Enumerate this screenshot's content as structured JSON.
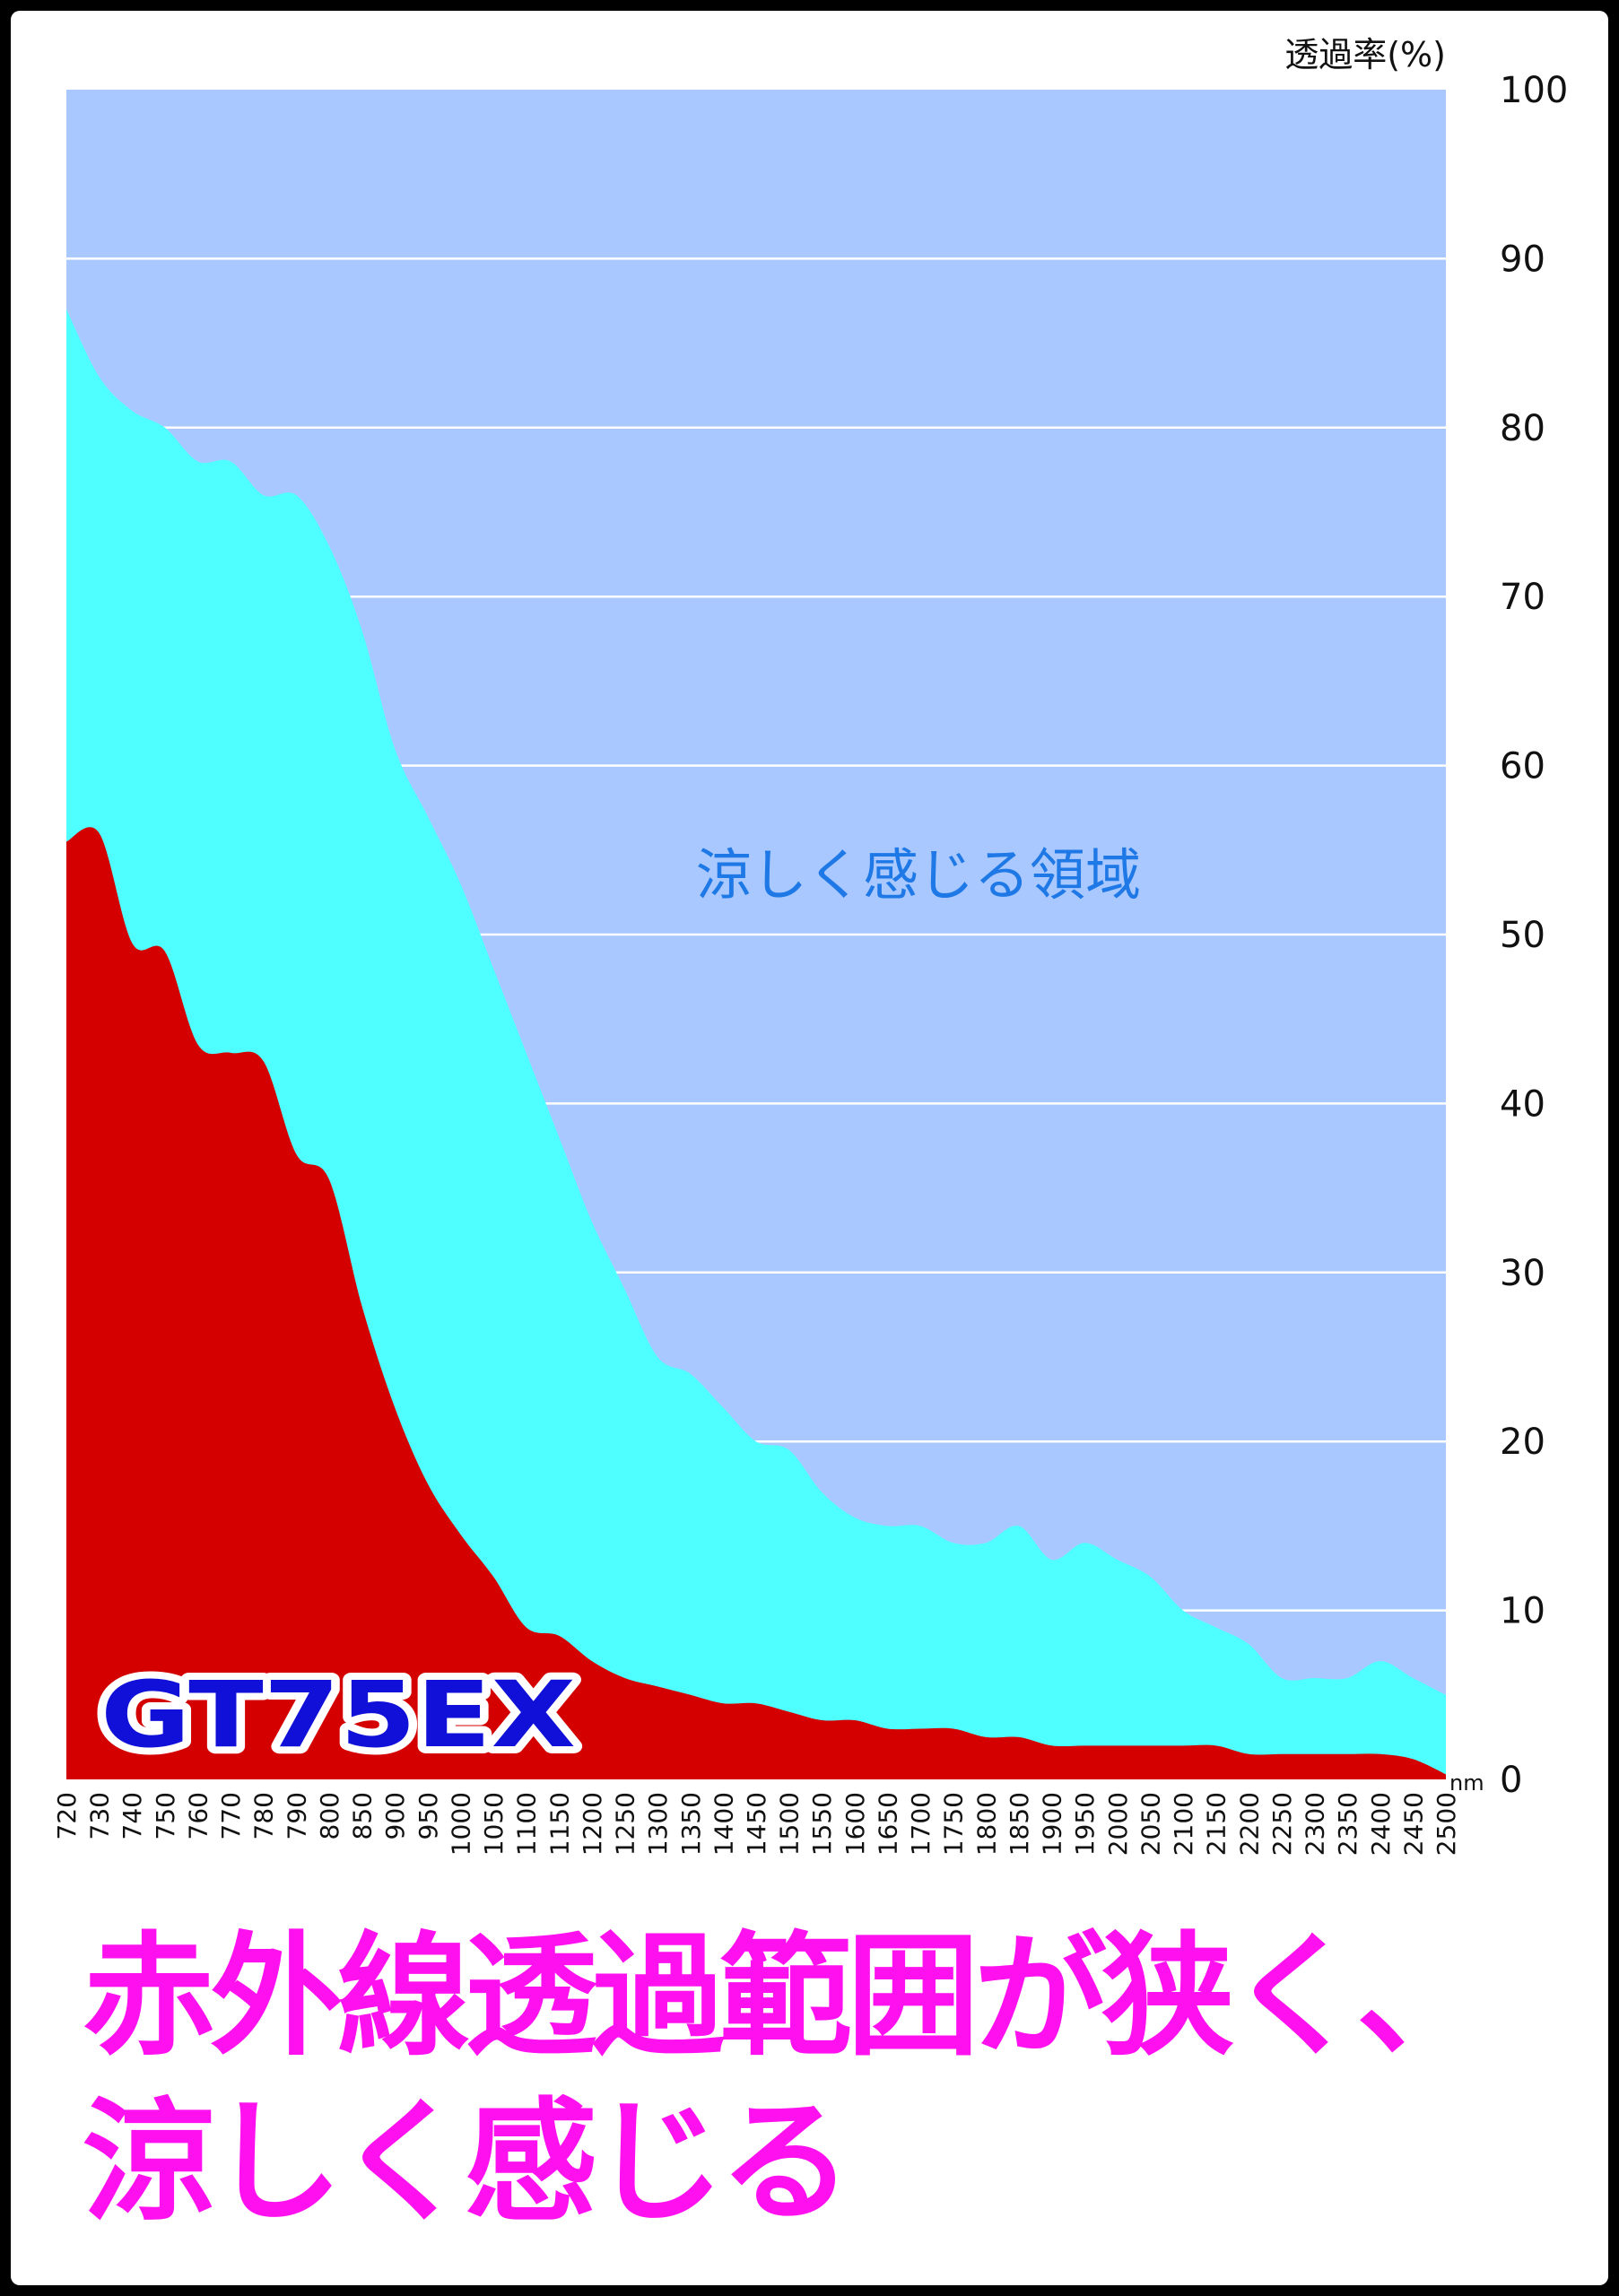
{
  "chart_data": {
    "type": "area",
    "ylabel": "透過率(%)",
    "x_unit": "nm",
    "ylim": [
      0,
      100
    ],
    "yticks": [
      0,
      10,
      20,
      30,
      40,
      50,
      60,
      70,
      80,
      90,
      100
    ],
    "x": [
      "720",
      "730",
      "740",
      "750",
      "760",
      "770",
      "780",
      "790",
      "800",
      "850",
      "900",
      "950",
      "1000",
      "1050",
      "1100",
      "1150",
      "1200",
      "1250",
      "1300",
      "1350",
      "1400",
      "1450",
      "1500",
      "1550",
      "1600",
      "1650",
      "1700",
      "1750",
      "1800",
      "1850",
      "1900",
      "1950",
      "2000",
      "2050",
      "2100",
      "2150",
      "2200",
      "2250",
      "2300",
      "2350",
      "2400",
      "2450",
      "2500"
    ],
    "grid": true,
    "background_region_label": "涼しく感じる領域",
    "series": [
      {
        "name": "",
        "color": "#4fffff",
        "values": [
          87,
          83,
          81,
          80,
          78,
          78,
          76,
          76,
          73,
          68,
          61,
          57,
          53,
          48,
          43,
          38,
          33,
          29,
          25,
          24,
          22,
          20,
          19.5,
          17,
          15.5,
          15,
          15,
          14,
          14,
          15,
          13,
          14,
          13,
          12,
          10,
          9,
          8,
          6,
          6,
          6,
          7,
          6,
          5
        ]
      },
      {
        "name": "",
        "color": "#d40000",
        "values": [
          55.5,
          56,
          49.5,
          49,
          43.5,
          43,
          42.5,
          37,
          35.5,
          28,
          22,
          17.5,
          14.5,
          12,
          9,
          8.5,
          7,
          6,
          5.5,
          5,
          4.5,
          4.5,
          4,
          3.5,
          3.5,
          3,
          3,
          3,
          2.5,
          2.5,
          2,
          2,
          2,
          2,
          2,
          2,
          1.5,
          1.5,
          1.5,
          1.5,
          1.5,
          1.2,
          0.3
        ]
      }
    ],
    "product_label": "GT75EX"
  },
  "colors": {
    "cool_region": "#a8c8ff",
    "gridline": "#ffffff",
    "headline": "#ff10ee"
  },
  "headline": {
    "line1": "赤外線透過範囲が狭く、",
    "line2": "涼しく感じる"
  }
}
